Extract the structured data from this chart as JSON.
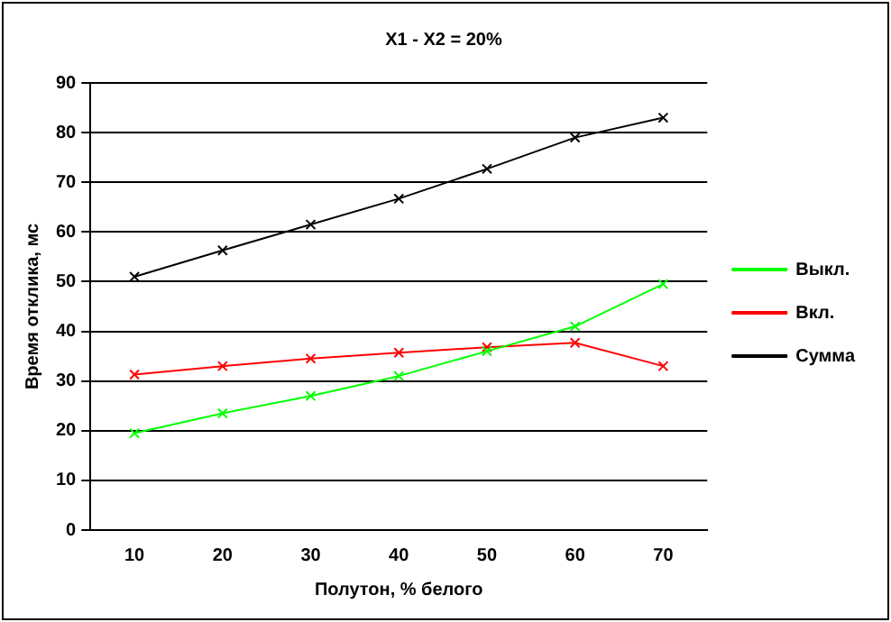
{
  "chart_data": {
    "type": "line",
    "title": "X1 - X2 = 20%",
    "xlabel": "Полутон, % белого",
    "ylabel": "Время отклика, мс",
    "categories": [
      "10",
      "20",
      "30",
      "40",
      "50",
      "60",
      "70"
    ],
    "series": [
      {
        "name": "Выкл.",
        "color": "#00ff00",
        "values": [
          19.5,
          23.5,
          27,
          31,
          36,
          41,
          49.5
        ]
      },
      {
        "name": "Вкл.",
        "color": "#ff0000",
        "values": [
          31.3,
          33,
          34.5,
          35.7,
          36.8,
          37.7,
          33
        ]
      },
      {
        "name": "Сумма",
        "color": "#000000",
        "values": [
          51,
          56.3,
          61.5,
          66.7,
          72.7,
          79,
          83
        ]
      }
    ],
    "ylim": [
      0,
      90
    ],
    "yticks": [
      0,
      10,
      20,
      30,
      40,
      50,
      60,
      70,
      80,
      90
    ],
    "grid": "y",
    "legend": "right",
    "marker": "cross",
    "line_style": "solid"
  }
}
